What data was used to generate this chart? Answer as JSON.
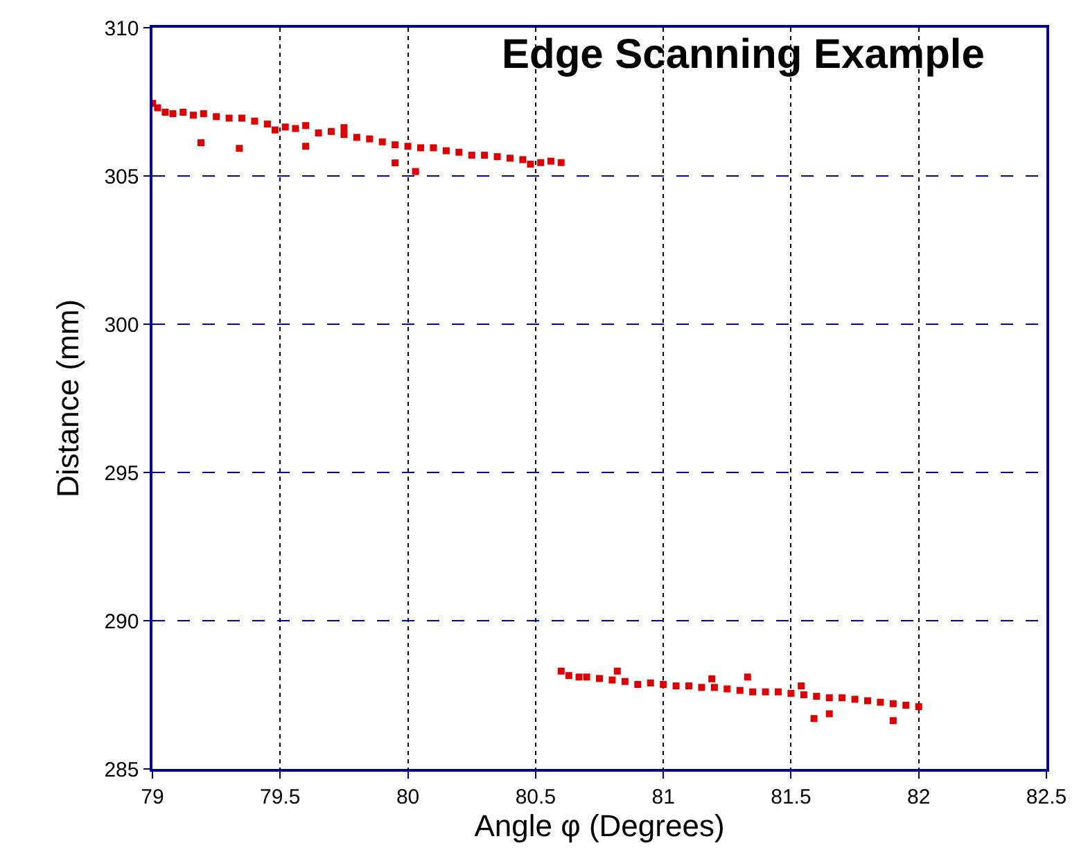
{
  "chart_data": {
    "type": "scatter",
    "title": "Edge Scanning Example",
    "xlabel": "Angle φ (Degrees)",
    "ylabel": "Distance (mm)",
    "xlim": [
      79,
      82.5
    ],
    "xticks": [
      79,
      79.5,
      80,
      80.5,
      81,
      81.5,
      82,
      82.5
    ],
    "ylim": [
      285,
      310
    ],
    "yticks": [
      285,
      290,
      295,
      300,
      305,
      310
    ],
    "grid": true,
    "marker": "square",
    "legend": false,
    "series": [
      {
        "color": "#dd0000",
        "x": [
          79.0,
          79.02,
          79.05,
          79.08,
          79.12,
          79.16,
          79.2,
          79.25,
          79.3,
          79.35,
          79.4,
          79.45,
          79.48,
          79.52,
          79.56,
          79.6,
          79.65,
          79.7,
          79.75,
          79.8,
          79.85,
          79.9,
          79.95,
          80.0,
          80.05,
          80.1,
          80.15,
          80.2,
          80.25,
          80.3,
          80.35,
          80.4,
          80.45,
          80.48,
          80.52,
          80.56,
          80.6,
          79.19,
          79.34,
          79.6,
          79.95,
          80.03,
          79.75,
          80.6,
          80.63,
          80.67,
          80.7,
          80.75,
          80.8,
          80.85,
          80.9,
          80.95,
          81.0,
          81.05,
          81.1,
          81.15,
          81.2,
          81.25,
          81.3,
          81.35,
          81.4,
          81.45,
          81.5,
          81.55,
          81.6,
          81.65,
          81.7,
          81.75,
          81.8,
          81.85,
          81.9,
          81.95,
          82.0,
          80.82,
          81.19,
          81.33,
          81.59,
          81.65,
          81.9,
          81.54
        ],
        "values": [
          307.45,
          307.3,
          307.15,
          307.1,
          307.15,
          307.05,
          307.1,
          307.0,
          306.95,
          306.95,
          306.85,
          306.75,
          306.55,
          306.65,
          306.6,
          306.7,
          306.45,
          306.5,
          306.4,
          306.3,
          306.25,
          306.15,
          306.05,
          306.0,
          305.95,
          305.95,
          305.85,
          305.8,
          305.7,
          305.7,
          305.65,
          305.6,
          305.55,
          305.4,
          305.45,
          305.5,
          305.45,
          306.12,
          305.93,
          306.0,
          305.44,
          305.15,
          306.63,
          288.3,
          288.15,
          288.1,
          288.1,
          288.05,
          288.0,
          287.95,
          287.85,
          287.9,
          287.85,
          287.8,
          287.8,
          287.75,
          287.75,
          287.7,
          287.65,
          287.6,
          287.6,
          287.6,
          287.55,
          287.5,
          287.45,
          287.4,
          287.4,
          287.35,
          287.3,
          287.25,
          287.2,
          287.15,
          287.1,
          288.3,
          288.04,
          288.1,
          286.7,
          286.86,
          286.63,
          287.8
        ]
      }
    ]
  }
}
